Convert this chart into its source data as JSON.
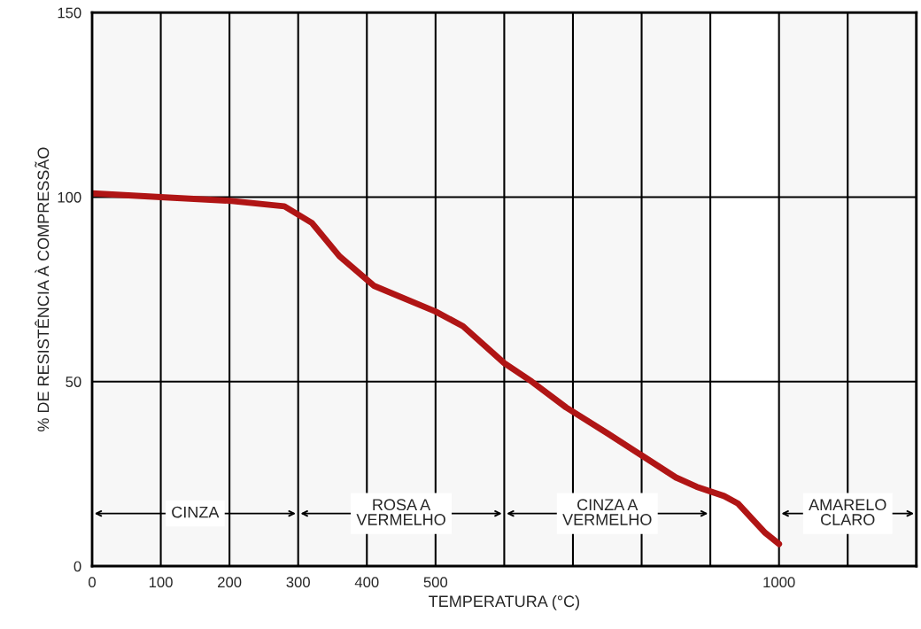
{
  "chart_data": {
    "type": "line",
    "xlabel": "TEMPERATURA (°C)",
    "ylabel": "% DE RESISTÊNCIA À COMPRESSÃO",
    "x": [
      0,
      100,
      200,
      280,
      320,
      360,
      410,
      500,
      540,
      600,
      640,
      690,
      750,
      800,
      850,
      880,
      920,
      940,
      965,
      980,
      1000
    ],
    "series": [
      {
        "color": "#b01515",
        "values": [
          101,
          100,
          99,
          97.5,
          93,
          84,
          76,
          69,
          65,
          55,
          50,
          43,
          36,
          30,
          24,
          21.5,
          19,
          17,
          12,
          9,
          6
        ]
      }
    ],
    "xlim": [
      0,
      1200
    ],
    "ylim": [
      0,
      150
    ],
    "xticks": [
      0,
      100,
      200,
      300,
      400,
      500,
      {
        "value": 600,
        "label": null
      },
      {
        "value": 700,
        "label": null
      },
      {
        "value": 800,
        "label": null
      },
      {
        "value": 900,
        "label": null
      },
      1000,
      {
        "value": 1100,
        "label": null
      },
      {
        "value": 1200,
        "label": null
      }
    ],
    "yticks": [
      0,
      50,
      100,
      150
    ],
    "bands": [
      {
        "axis": "x",
        "from": 0,
        "to": 300,
        "label": "CINZA",
        "color": "#f7f7f7"
      },
      {
        "axis": "x",
        "from": 300,
        "to": 600,
        "label": "ROSA A\nVERMELHO",
        "color": "#f7f7f7"
      },
      {
        "axis": "x",
        "from": 600,
        "to": 900,
        "label": "CINZA A\nVERMELHO",
        "color": "#f7f7f7"
      },
      {
        "axis": "x",
        "from": 1000,
        "to": 1200,
        "label": "AMARELO\nCLARO",
        "color": "#f7f7f7"
      }
    ],
    "grid": true,
    "marker": "none",
    "line_style": "solid"
  }
}
